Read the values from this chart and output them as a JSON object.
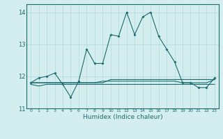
{
  "x": [
    0,
    1,
    2,
    3,
    4,
    5,
    6,
    7,
    8,
    9,
    10,
    11,
    12,
    13,
    14,
    15,
    16,
    17,
    18,
    19,
    20,
    21,
    22,
    23
  ],
  "line1": [
    11.8,
    11.95,
    12.0,
    12.1,
    11.75,
    11.35,
    11.85,
    12.85,
    12.4,
    12.4,
    13.3,
    13.25,
    14.0,
    13.3,
    13.85,
    14.0,
    13.25,
    12.85,
    12.45,
    11.8,
    11.8,
    11.65,
    11.65,
    11.95
  ],
  "line2": [
    11.75,
    11.7,
    11.75,
    11.75,
    11.75,
    11.75,
    11.75,
    11.75,
    11.75,
    11.75,
    11.75,
    11.75,
    11.75,
    11.75,
    11.75,
    11.75,
    11.75,
    11.75,
    11.75,
    11.75,
    11.75,
    11.75,
    11.75,
    11.75
  ],
  "line3": [
    11.8,
    11.8,
    11.8,
    11.8,
    11.8,
    11.8,
    11.8,
    11.8,
    11.8,
    11.8,
    11.9,
    11.9,
    11.9,
    11.9,
    11.9,
    11.9,
    11.9,
    11.9,
    11.9,
    11.9,
    11.9,
    11.9,
    11.9,
    11.9
  ],
  "line4": [
    11.8,
    11.8,
    11.8,
    11.8,
    11.8,
    11.8,
    11.8,
    11.8,
    11.8,
    11.85,
    11.85,
    11.85,
    11.85,
    11.85,
    11.85,
    11.85,
    11.85,
    11.85,
    11.85,
    11.8,
    11.8,
    11.8,
    11.8,
    11.9
  ],
  "line_color": "#1a6b6b",
  "bg_color": "#d4eef0",
  "grid_color": "#b0d8db",
  "xlabel": "Humidex (Indice chaleur)",
  "xlim": [
    -0.5,
    23.5
  ],
  "ylim": [
    11,
    14.25
  ],
  "yticks": [
    11,
    12,
    13,
    14
  ],
  "xticks": [
    0,
    1,
    2,
    3,
    4,
    5,
    6,
    7,
    8,
    9,
    10,
    11,
    12,
    13,
    14,
    15,
    16,
    17,
    18,
    19,
    20,
    21,
    22,
    23
  ]
}
